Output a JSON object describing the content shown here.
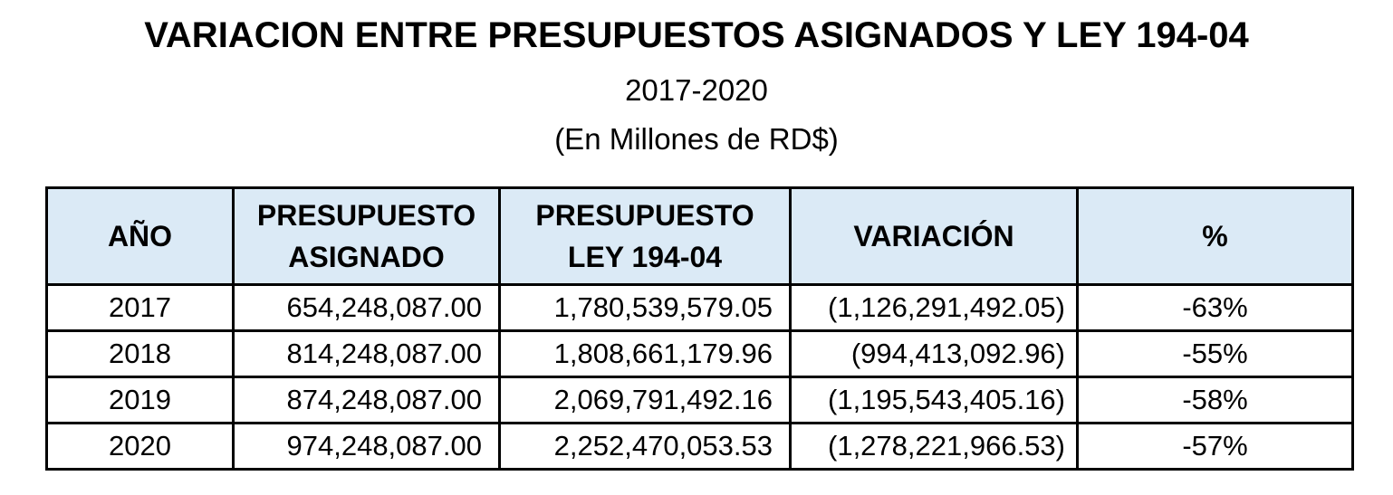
{
  "title": "VARIACION ENTRE PRESUPUESTOS ASIGNADOS Y LEY 194-04",
  "period": "2017-2020",
  "units": "(En Millones de RD$)",
  "table": {
    "headers": {
      "year": "AÑO",
      "assigned_line1": "PRESUPUESTO",
      "assigned_line2": "ASIGNADO",
      "law_line1": "PRESUPUESTO",
      "law_line2": "LEY 194-04",
      "variation": "VARIACIÓN",
      "percent": "%"
    },
    "rows": [
      {
        "year": "2017",
        "assigned": "654,248,087.00",
        "law": "1,780,539,579.05",
        "variation": "(1,126,291,492.05)",
        "percent": "-63%"
      },
      {
        "year": "2018",
        "assigned": "814,248,087.00",
        "law": "1,808,661,179.96",
        "variation": "(994,413,092.96)",
        "percent": "-55%"
      },
      {
        "year": "2019",
        "assigned": "874,248,087.00",
        "law": "2,069,791,492.16",
        "variation": "(1,195,543,405.16)",
        "percent": "-58%"
      },
      {
        "year": "2020",
        "assigned": "974,248,087.00",
        "law": "2,252,470,053.53",
        "variation": "(1,278,221,966.53)",
        "percent": "-57%"
      }
    ]
  },
  "colors": {
    "header_fill": "#dbeaf6",
    "border": "#000000"
  }
}
